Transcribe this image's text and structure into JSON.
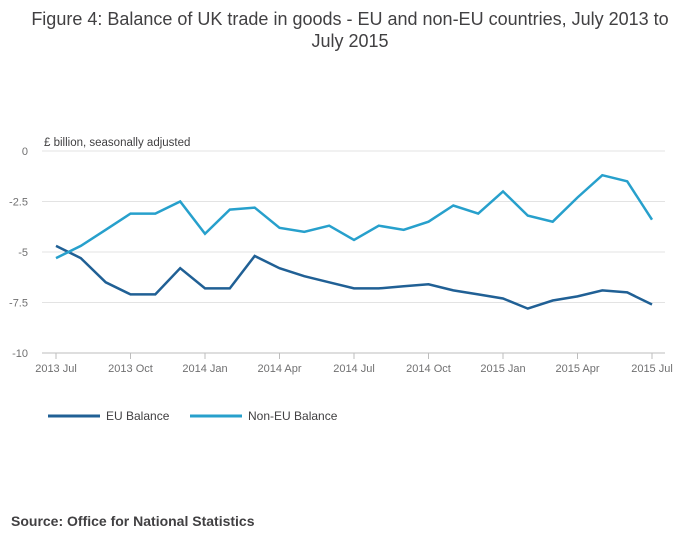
{
  "title": "Figure 4: Balance of UK trade in goods - EU and non-EU countries, July 2013 to July 2015",
  "source": "Source: Office for National Statistics",
  "chart_data": {
    "type": "line",
    "ylabel": "£ billion, seasonally adjusted",
    "ylim": [
      -10,
      0
    ],
    "yticks": [
      0,
      -2.5,
      -5,
      -7.5,
      -10
    ],
    "ytick_labels": [
      "0",
      "-2.5",
      "-5",
      "-7.5",
      "-10"
    ],
    "x_tick_labels": [
      "2013 Jul",
      "2013 Oct",
      "2014 Jan",
      "2014 Apr",
      "2014 Jul",
      "2014 Oct",
      "2015 Jan",
      "2015 Apr",
      "2015 Jul"
    ],
    "x_tick_every": 3,
    "grid": true,
    "legend_position": "bottom-left",
    "series": [
      {
        "name": "EU Balance",
        "color": "#206095",
        "values": [
          -4.7,
          -5.3,
          -6.5,
          -7.1,
          -7.1,
          -5.8,
          -6.8,
          -6.8,
          -5.2,
          -5.8,
          -6.2,
          -6.5,
          -6.8,
          -6.8,
          -6.7,
          -6.6,
          -6.9,
          -7.1,
          -7.3,
          -7.8,
          -7.4,
          -7.2,
          -6.9,
          -7.0,
          -7.6
        ]
      },
      {
        "name": "Non-EU Balance",
        "color": "#27A0CC",
        "values": [
          -5.3,
          -4.7,
          -3.9,
          -3.1,
          -3.1,
          -2.5,
          -4.1,
          -2.9,
          -2.8,
          -3.8,
          -4.0,
          -3.7,
          -4.4,
          -3.7,
          -3.9,
          -3.5,
          -2.7,
          -3.1,
          -2.0,
          -3.2,
          -3.5,
          -2.3,
          -1.2,
          -1.5,
          -3.4
        ]
      }
    ]
  }
}
